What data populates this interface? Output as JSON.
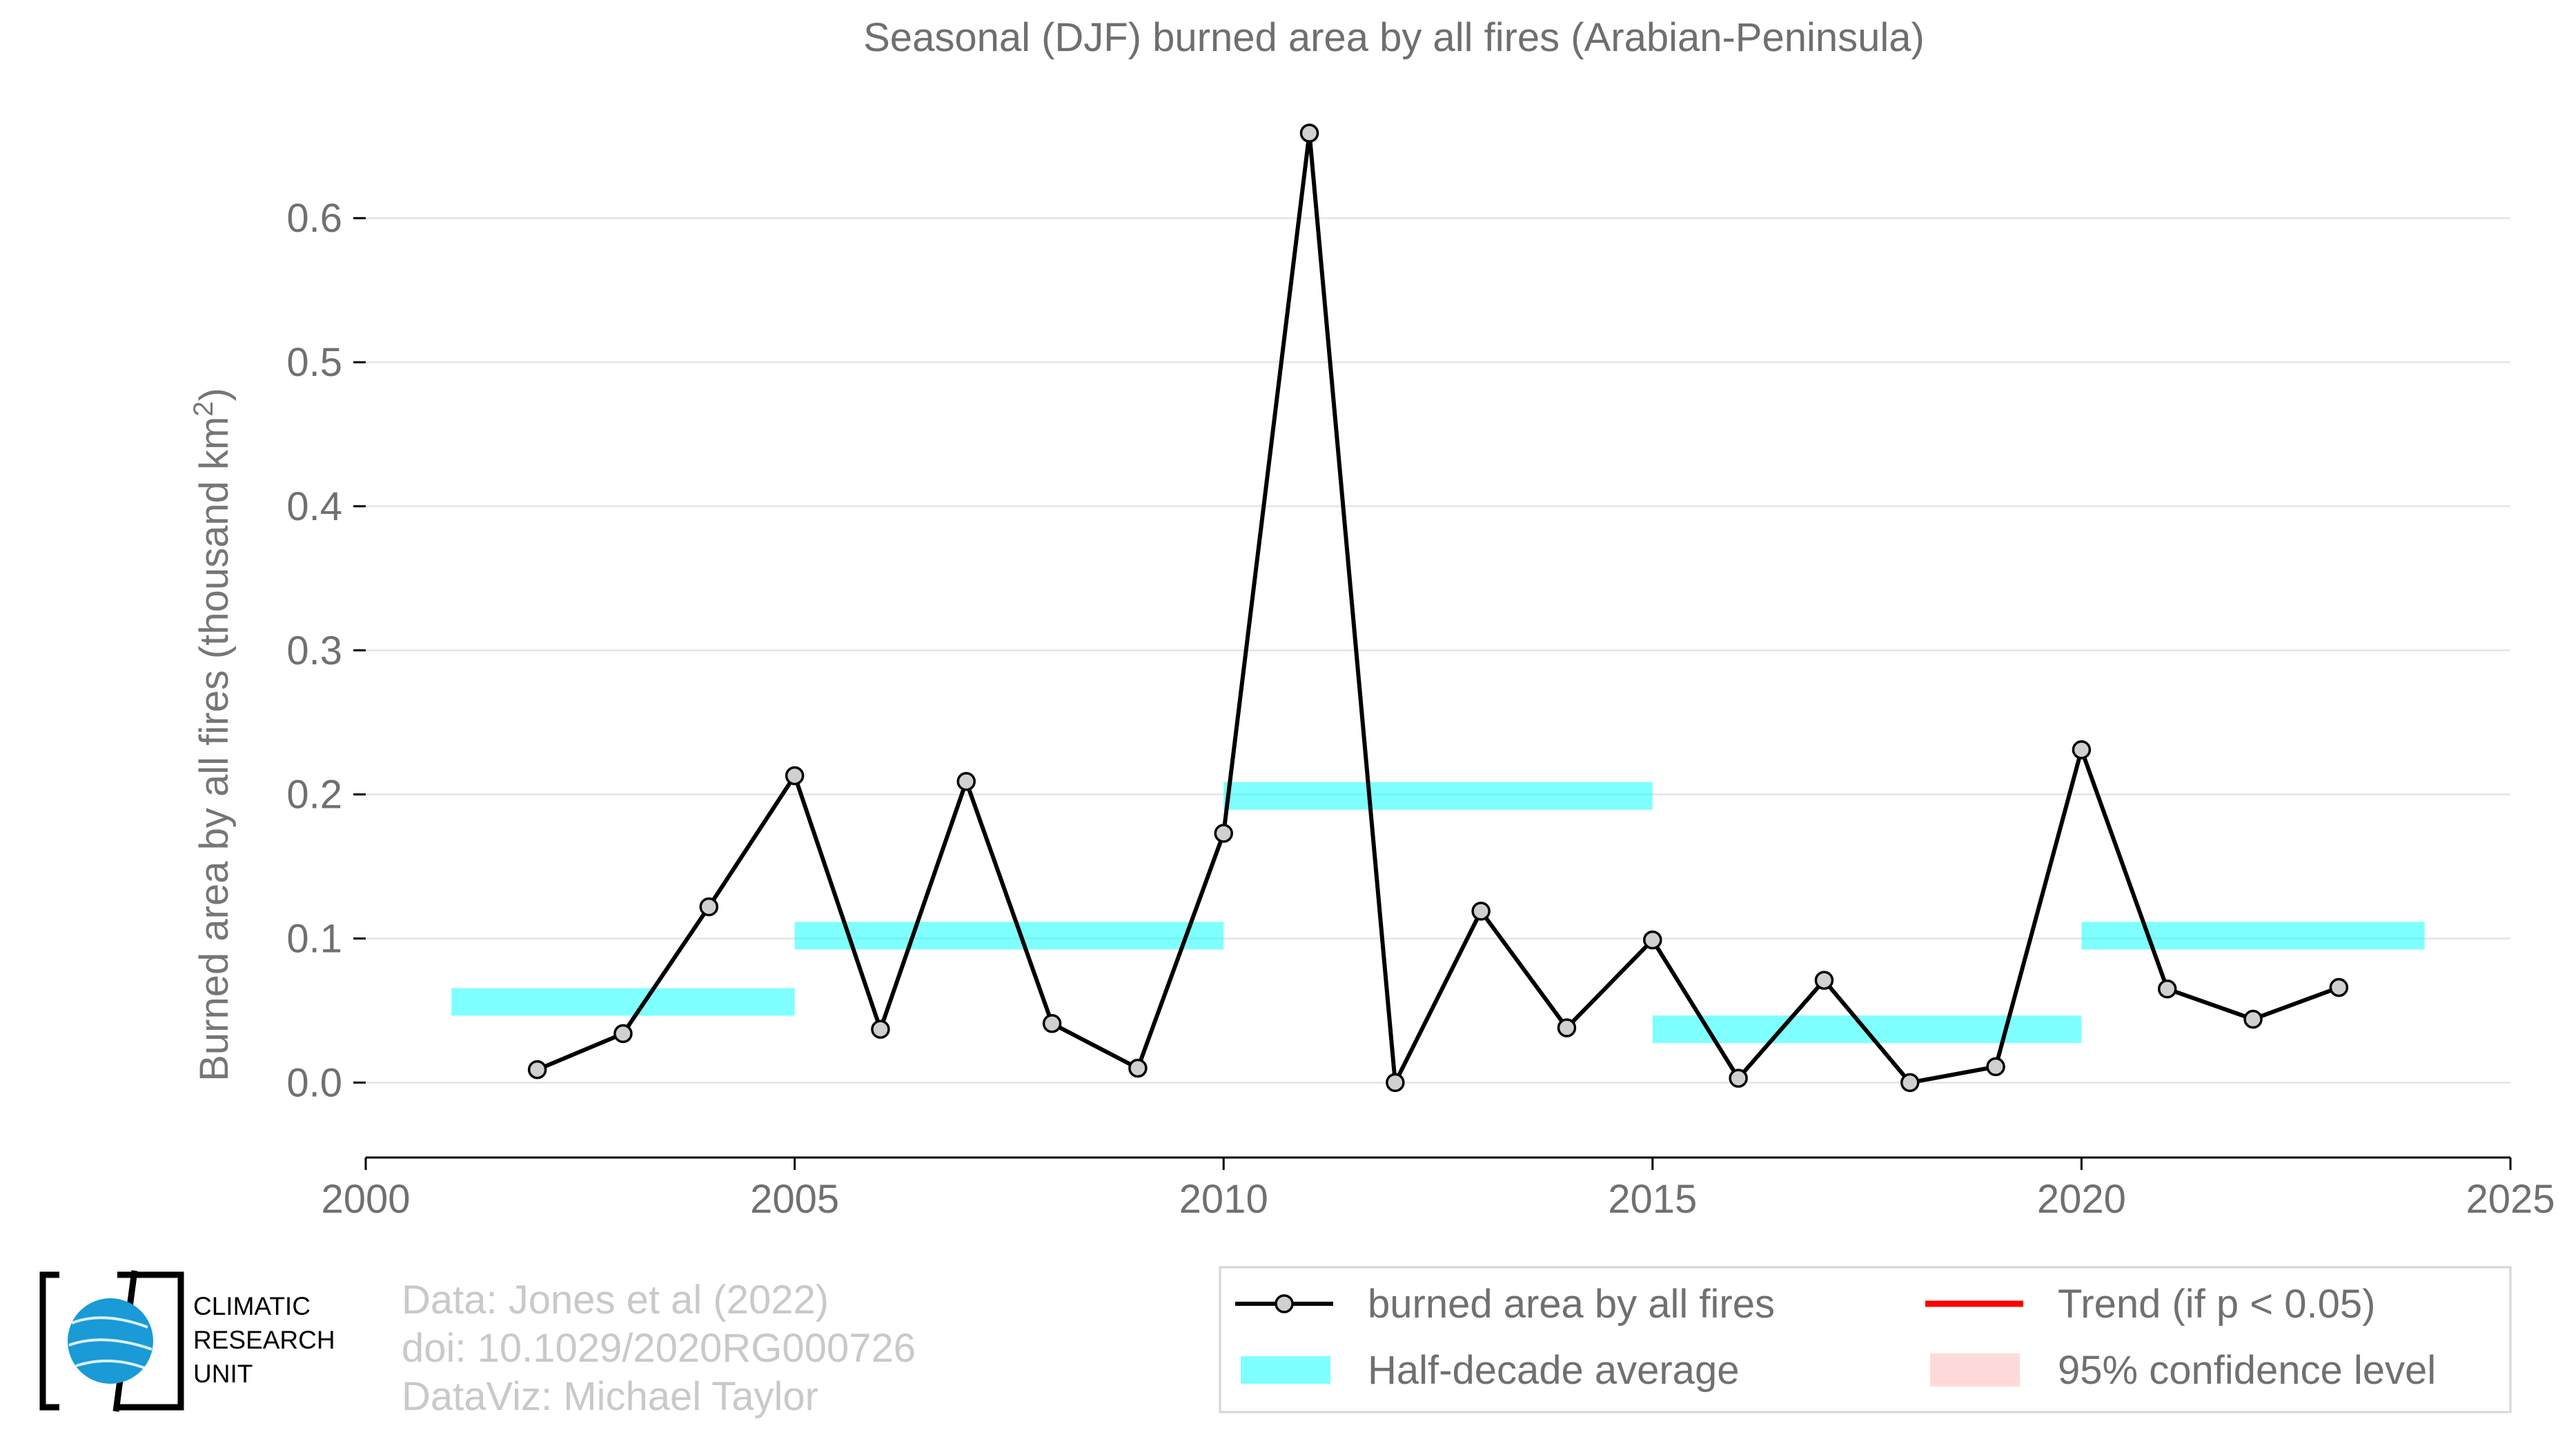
{
  "title": "Seasonal (DJF) burned area by all fires (Arabian-Peninsula)",
  "ylabel": "Burned area by all fires (thousand km",
  "ylabel_superscript": "2",
  "ylabel_suffix": ")",
  "credits": [
    "Data: Jones et al (2022)",
    "doi: 10.1029/2020RG000726",
    "DataViz: Michael Taylor"
  ],
  "logo": {
    "lines": [
      "CLIMATIC",
      "RESEARCH",
      "UNIT"
    ],
    "globe_color": "#1a9ad6"
  },
  "legend": {
    "series_label": "burned area by all fires",
    "trend_label": "Trend (if p < 0.05)",
    "avg_label": "Half-decade average",
    "ci_label": "95% confidence level",
    "trend_color": "#ff0000",
    "ci_color": "#ffd6d6",
    "avg_color": "#00ffff"
  },
  "chart_data": {
    "type": "line",
    "title": "Seasonal (DJF) burned area by all fires (Arabian-Peninsula)",
    "xlabel": "",
    "ylabel": "Burned area by all fires (thousand km2)",
    "xlim": [
      2000,
      2025
    ],
    "ylim": [
      -0.052,
      0.67
    ],
    "x_ticks": [
      2000,
      2005,
      2010,
      2015,
      2020,
      2025
    ],
    "y_ticks": [
      0.0,
      0.1,
      0.2,
      0.3,
      0.4,
      0.5,
      0.6
    ],
    "y_tick_labels": [
      "0.0",
      "0.1",
      "0.2",
      "0.3",
      "0.4",
      "0.5",
      "0.6"
    ],
    "grid": "horizontal",
    "legend_position": "bottom-right",
    "series": [
      {
        "name": "burned area by all fires",
        "x": [
          2002,
          2003,
          2004,
          2005,
          2006,
          2007,
          2008,
          2009,
          2010,
          2011,
          2012,
          2013,
          2014,
          2015,
          2016,
          2017,
          2018,
          2019,
          2020,
          2021,
          2022,
          2023
        ],
        "values": [
          0.009,
          0.034,
          0.122,
          0.213,
          0.037,
          0.209,
          0.041,
          0.01,
          0.173,
          0.659,
          0.0,
          0.119,
          0.038,
          0.099,
          0.003,
          0.071,
          0.0,
          0.011,
          0.231,
          0.065,
          0.044,
          0.066
        ],
        "color": "#000000"
      }
    ],
    "half_decade_averages": [
      {
        "x_start": 2001,
        "x_end": 2005,
        "value": 0.056
      },
      {
        "x_start": 2005,
        "x_end": 2010,
        "value": 0.102
      },
      {
        "x_start": 2010,
        "x_end": 2015,
        "value": 0.199
      },
      {
        "x_start": 2015,
        "x_end": 2020,
        "value": 0.037
      },
      {
        "x_start": 2020,
        "x_end": 2024,
        "value": 0.102
      }
    ]
  }
}
